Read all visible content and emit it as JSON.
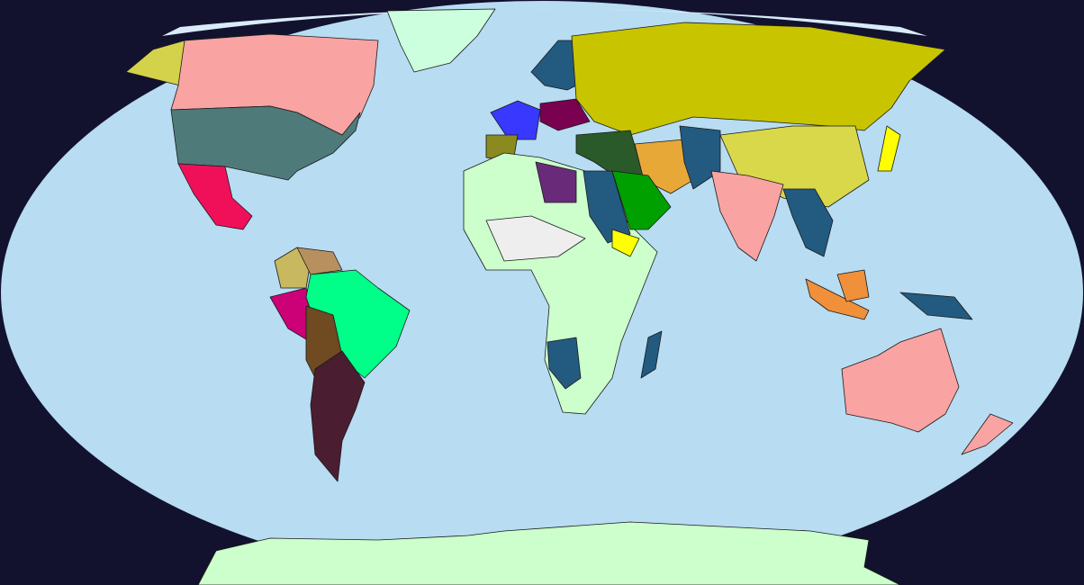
{
  "map": {
    "background_color": "#12122e",
    "ocean_color": "#b8dcf2",
    "ice_color": "#d9ebf9",
    "region_colors": {
      "canada": "#f9a3a3",
      "alaska": "#d4d24a",
      "usa": "#4f7a7a",
      "greenland": "#ccffdd",
      "mexico": "#f0105a",
      "russia": "#c8c400",
      "china": "#d8d84a",
      "india": "#f9a3a3",
      "africa": "#ccffcc",
      "brazil": "#00ff88",
      "argentina": "#4b1d31",
      "chile_bolivia": "#704a20",
      "peru": "#cc0077",
      "colombia": "#c8b860",
      "venezuela": "#b89060",
      "australia": "#f9a3a3",
      "new_zealand": "#f9a3a3",
      "antarctica": "#ccffcc",
      "arabia": "#00a000",
      "iran": "#e8a838",
      "ottoman": "#2a5a2a",
      "egypt": "#235a80",
      "libya": "#6a2a7a",
      "france": "#3838ff",
      "austria": "#7a0050",
      "scandinavia": "#235a80",
      "iberia": "#8a8a20",
      "central_asia": "#235a80",
      "southeast_asia": "#235a80",
      "indonesia": "#f0903a",
      "japan": "#ffff00",
      "southern_africa": "#235a80",
      "madagascar": "#235a80",
      "ethiopia": "#ffff00",
      "unclaimed": "#eeeeee"
    }
  }
}
